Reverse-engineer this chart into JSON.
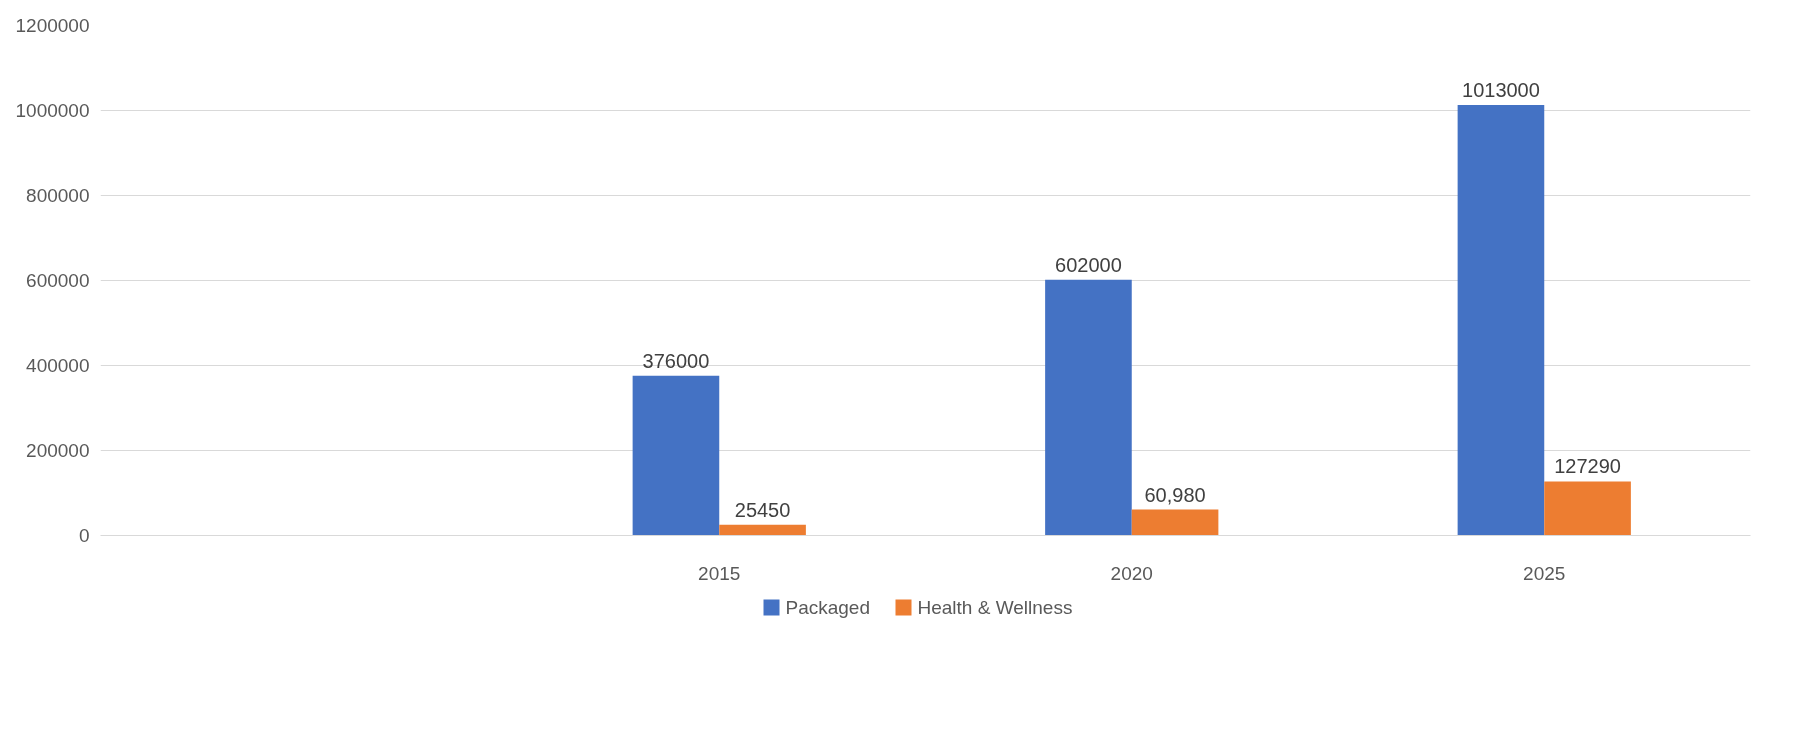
{
  "chart_data": {
    "type": "bar",
    "categories": [
      null,
      "2015",
      "2020",
      "2025"
    ],
    "series": [
      {
        "name": "Packaged",
        "color": "#4472c4",
        "values": [
          null,
          376000,
          602000,
          1013000
        ],
        "value_labels": [
          null,
          "376000",
          "602000",
          "1013000"
        ]
      },
      {
        "name": "Health & Wellness",
        "color": "#ed7d31",
        "values": [
          null,
          25450,
          60980,
          127290
        ],
        "value_labels": [
          null,
          "25450",
          "60,980",
          "127290"
        ]
      }
    ],
    "ylim": [
      0,
      1200000
    ],
    "yticks": [
      0,
      200000,
      400000,
      600000,
      800000,
      1000000,
      1200000
    ],
    "grid": "y",
    "legend": "bottom"
  }
}
